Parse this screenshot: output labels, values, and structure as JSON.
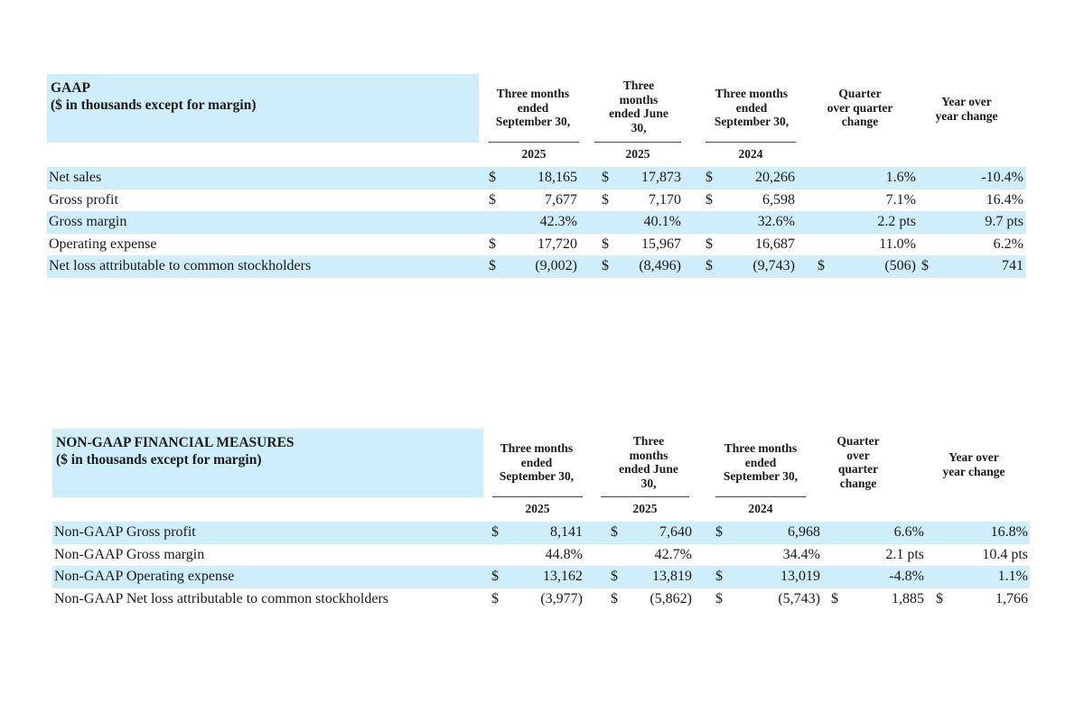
{
  "gaap": {
    "title_line1": "GAAP",
    "title_line2": "($ in thousands except for margin)",
    "columns": [
      {
        "label_lines": [
          "Three months",
          "ended",
          "September 30,"
        ],
        "year": "2025"
      },
      {
        "label_lines": [
          "Three",
          "months",
          "ended June",
          "30,"
        ],
        "year": "2025"
      },
      {
        "label_lines": [
          "Three months",
          "ended",
          "September 30,"
        ],
        "year": "2024"
      },
      {
        "label_lines": [
          "Quarter",
          "over quarter",
          "change"
        ],
        "year": ""
      },
      {
        "label_lines": [
          "Year over",
          "year change"
        ],
        "year": ""
      }
    ],
    "rows": [
      {
        "label": "Net sales",
        "c1s": "$",
        "c1": "18,165",
        "c2s": "$",
        "c2": "17,873",
        "c3s": "$",
        "c3": "20,266",
        "c4s": "",
        "c4": "1.6%",
        "c5s": "",
        "c5": "-10.4%"
      },
      {
        "label": "Gross profit",
        "c1s": "$",
        "c1": "7,677",
        "c2s": "$",
        "c2": "7,170",
        "c3s": "$",
        "c3": "6,598",
        "c4s": "",
        "c4": "7.1%",
        "c5s": "",
        "c5": "16.4%"
      },
      {
        "label": "Gross margin",
        "c1s": "",
        "c1": "42.3%",
        "c2s": "",
        "c2": "40.1%",
        "c3s": "",
        "c3": "32.6%",
        "c4s": "",
        "c4": "2.2 pts",
        "c5s": "",
        "c5": "9.7 pts"
      },
      {
        "label": "Operating expense",
        "c1s": "$",
        "c1": "17,720",
        "c2s": "$",
        "c2": "15,967",
        "c3s": "$",
        "c3": "16,687",
        "c4s": "",
        "c4": "11.0%",
        "c5s": "",
        "c5": "6.2%"
      },
      {
        "label": "Net loss attributable to common stockholders",
        "c1s": "$",
        "c1": "(9,002)",
        "c2s": "$",
        "c2": "(8,496)",
        "c3s": "$",
        "c3": "(9,743)",
        "c4s": "$",
        "c4": "(506)",
        "c5s": "$",
        "c5": "741"
      }
    ]
  },
  "nongaap": {
    "title_line1": "NON-GAAP FINANCIAL MEASURES",
    "title_line2": "($ in thousands except for margin)",
    "columns": [
      {
        "label_lines": [
          "Three months",
          "ended",
          "September 30,"
        ],
        "year": "2025"
      },
      {
        "label_lines": [
          "Three",
          "months",
          "ended June",
          "30,"
        ],
        "year": "2025"
      },
      {
        "label_lines": [
          "Three months",
          "ended",
          "September 30,"
        ],
        "year": "2024"
      },
      {
        "label_lines": [
          "Quarter",
          "over",
          "quarter",
          "change"
        ],
        "year": ""
      },
      {
        "label_lines": [
          "Year over",
          "year change"
        ],
        "year": ""
      }
    ],
    "rows": [
      {
        "label": "Non-GAAP Gross profit",
        "c1s": "$",
        "c1": "8,141",
        "c2s": "$",
        "c2": "7,640",
        "c3s": "$",
        "c3": "6,968",
        "c4s": "",
        "c4": "6.6%",
        "c5s": "",
        "c5": "16.8%"
      },
      {
        "label": "Non-GAAP Gross margin",
        "c1s": "",
        "c1": "44.8%",
        "c2s": "",
        "c2": "42.7%",
        "c3s": "",
        "c3": "34.4%",
        "c4s": "",
        "c4": "2.1 pts",
        "c5s": "",
        "c5": "10.4 pts"
      },
      {
        "label": "Non-GAAP Operating expense",
        "c1s": "$",
        "c1": "13,162",
        "c2s": "$",
        "c2": "13,819",
        "c3s": "$",
        "c3": "13,019",
        "c4s": "",
        "c4": "-4.8%",
        "c5s": "",
        "c5": "1.1%"
      },
      {
        "label": "Non-GAAP Net loss attributable to common stockholders",
        "c1s": "$",
        "c1": "(3,977)",
        "c2s": "$",
        "c2": "(5,862)",
        "c3s": "$",
        "c3": "(5,743)",
        "c4s": "$",
        "c4": "1,885",
        "c5s": "$",
        "c5": "1,766"
      }
    ]
  },
  "colors": {
    "shade": "#cfeefb",
    "text": "#1a1a1a"
  }
}
